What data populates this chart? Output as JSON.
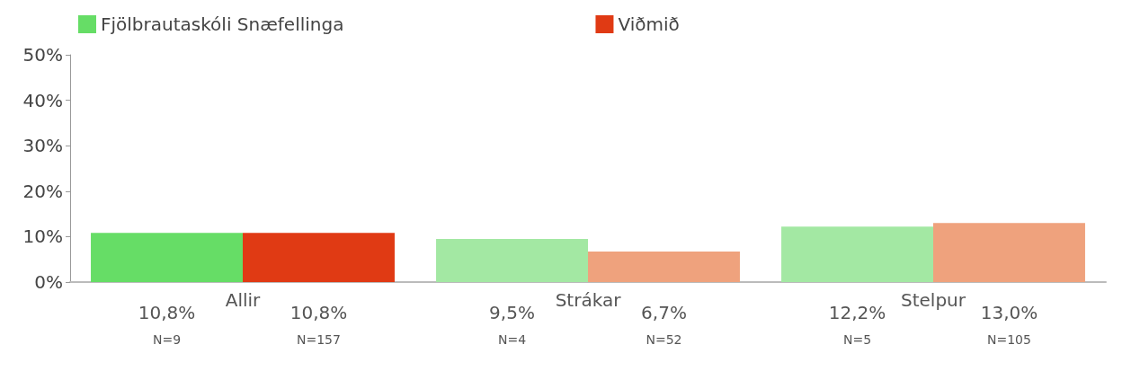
{
  "chart_data": {
    "type": "bar",
    "categories": [
      "Allir",
      "Strákar",
      "Stelpur"
    ],
    "series": [
      {
        "name": "Fjölbrautaskóli Snæfellinga",
        "color": "#66dd66",
        "colors": [
          "#66dd66",
          "#a3e8a3",
          "#a3e8a3"
        ],
        "values": [
          10.8,
          9.5,
          12.2
        ],
        "value_labels": [
          "10,8%",
          "9,5%",
          "12,2%"
        ]
      },
      {
        "name": "Viðmið",
        "color": "#e03a14",
        "colors": [
          "#e03a14",
          "#efa27d",
          "#efa27d"
        ],
        "values": [
          10.8,
          6.7,
          13.0
        ],
        "value_labels": [
          "10,8%",
          "6,7%",
          "13,0%"
        ]
      }
    ],
    "annotations": [
      "N=9",
      "N=157",
      "N=4",
      "N=52",
      "N=5",
      "N=105"
    ],
    "ylim": [
      0,
      50
    ],
    "yticks": [
      {
        "value": 0,
        "label": "0%"
      },
      {
        "value": 10,
        "label": "10%"
      },
      {
        "value": 20,
        "label": "20%"
      },
      {
        "value": 30,
        "label": "30%"
      },
      {
        "value": 40,
        "label": "40%"
      },
      {
        "value": 50,
        "label": "50%"
      }
    ],
    "grid": false,
    "legend": "top left"
  }
}
